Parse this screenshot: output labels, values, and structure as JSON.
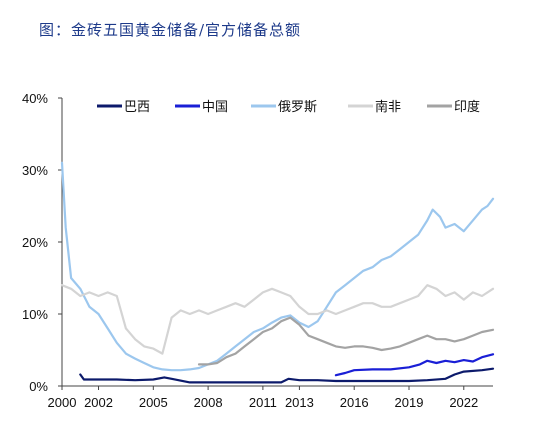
{
  "title": "图：金砖五国黄金储备/官方储备总额",
  "chart_data": {
    "type": "line",
    "title": "图：金砖五国黄金储备/官方储备总额",
    "xlabel": "",
    "ylabel": "",
    "xlim": [
      2000,
      2023.6
    ],
    "ylim": [
      0,
      40
    ],
    "x_ticks": [
      "2000",
      "2002",
      "2005",
      "2008",
      "2011",
      "2013",
      "2016",
      "2019",
      "2022"
    ],
    "y_ticks": [
      "0%",
      "10%",
      "20%",
      "30%",
      "40%"
    ],
    "legend_position": "top",
    "grid": false,
    "series": [
      {
        "name": "巴西",
        "color": "#0c1a6b",
        "width": 2.2,
        "points": [
          [
            2001.0,
            1.6
          ],
          [
            2001.2,
            0.9
          ],
          [
            2002.0,
            0.9
          ],
          [
            2003.0,
            0.9
          ],
          [
            2004.0,
            0.8
          ],
          [
            2005.0,
            0.9
          ],
          [
            2005.6,
            1.2
          ],
          [
            2006.0,
            1.0
          ],
          [
            2007.0,
            0.5
          ],
          [
            2008.0,
            0.5
          ],
          [
            2009.0,
            0.5
          ],
          [
            2010.0,
            0.5
          ],
          [
            2011.0,
            0.5
          ],
          [
            2012.0,
            0.5
          ],
          [
            2012.4,
            1.0
          ],
          [
            2013.0,
            0.8
          ],
          [
            2014.0,
            0.8
          ],
          [
            2015.0,
            0.7
          ],
          [
            2016.0,
            0.7
          ],
          [
            2017.0,
            0.7
          ],
          [
            2018.0,
            0.7
          ],
          [
            2019.0,
            0.7
          ],
          [
            2020.0,
            0.8
          ],
          [
            2021.0,
            1.0
          ],
          [
            2021.5,
            1.6
          ],
          [
            2022.0,
            2.0
          ],
          [
            2023.0,
            2.2
          ],
          [
            2023.6,
            2.4
          ]
        ]
      },
      {
        "name": "中国",
        "color": "#1a1fd6",
        "width": 2.2,
        "points": [
          [
            2015.0,
            1.5
          ],
          [
            2015.5,
            1.8
          ],
          [
            2016.0,
            2.2
          ],
          [
            2017.0,
            2.3
          ],
          [
            2018.0,
            2.3
          ],
          [
            2019.0,
            2.6
          ],
          [
            2019.6,
            3.0
          ],
          [
            2020.0,
            3.5
          ],
          [
            2020.5,
            3.2
          ],
          [
            2021.0,
            3.5
          ],
          [
            2021.5,
            3.3
          ],
          [
            2022.0,
            3.6
          ],
          [
            2022.5,
            3.4
          ],
          [
            2023.0,
            4.0
          ],
          [
            2023.6,
            4.4
          ]
        ]
      },
      {
        "name": "俄罗斯",
        "color": "#9cc7ee",
        "width": 2.2,
        "points": [
          [
            2000.0,
            31.0
          ],
          [
            2000.2,
            22.0
          ],
          [
            2000.5,
            15.0
          ],
          [
            2001.0,
            13.5
          ],
          [
            2001.5,
            11.0
          ],
          [
            2002.0,
            10.0
          ],
          [
            2002.5,
            8.0
          ],
          [
            2003.0,
            6.0
          ],
          [
            2003.5,
            4.5
          ],
          [
            2004.0,
            3.8
          ],
          [
            2004.5,
            3.2
          ],
          [
            2005.0,
            2.6
          ],
          [
            2005.5,
            2.3
          ],
          [
            2006.0,
            2.2
          ],
          [
            2006.5,
            2.2
          ],
          [
            2007.0,
            2.3
          ],
          [
            2007.5,
            2.5
          ],
          [
            2008.0,
            3.0
          ],
          [
            2008.5,
            3.5
          ],
          [
            2009.0,
            4.5
          ],
          [
            2009.5,
            5.5
          ],
          [
            2010.0,
            6.5
          ],
          [
            2010.5,
            7.5
          ],
          [
            2011.0,
            8.0
          ],
          [
            2011.5,
            8.8
          ],
          [
            2012.0,
            9.5
          ],
          [
            2012.5,
            9.8
          ],
          [
            2013.0,
            8.8
          ],
          [
            2013.5,
            8.2
          ],
          [
            2014.0,
            9.0
          ],
          [
            2014.5,
            11.0
          ],
          [
            2015.0,
            13.0
          ],
          [
            2015.5,
            14.0
          ],
          [
            2016.0,
            15.0
          ],
          [
            2016.5,
            16.0
          ],
          [
            2017.0,
            16.5
          ],
          [
            2017.5,
            17.5
          ],
          [
            2018.0,
            18.0
          ],
          [
            2018.5,
            19.0
          ],
          [
            2019.0,
            20.0
          ],
          [
            2019.5,
            21.0
          ],
          [
            2020.0,
            23.0
          ],
          [
            2020.3,
            24.5
          ],
          [
            2020.7,
            23.5
          ],
          [
            2021.0,
            22.0
          ],
          [
            2021.5,
            22.5
          ],
          [
            2022.0,
            21.5
          ],
          [
            2022.5,
            23.0
          ],
          [
            2023.0,
            24.5
          ],
          [
            2023.3,
            25.0
          ],
          [
            2023.6,
            26.0
          ]
        ]
      },
      {
        "name": "南非",
        "color": "#d4d4d4",
        "width": 2.2,
        "points": [
          [
            2000.0,
            14.0
          ],
          [
            2000.5,
            13.5
          ],
          [
            2001.0,
            12.5
          ],
          [
            2001.5,
            13.0
          ],
          [
            2002.0,
            12.5
          ],
          [
            2002.5,
            13.0
          ],
          [
            2003.0,
            12.5
          ],
          [
            2003.5,
            8.0
          ],
          [
            2004.0,
            6.5
          ],
          [
            2004.5,
            5.5
          ],
          [
            2005.0,
            5.2
          ],
          [
            2005.5,
            4.5
          ],
          [
            2006.0,
            9.5
          ],
          [
            2006.5,
            10.5
          ],
          [
            2007.0,
            10.0
          ],
          [
            2007.5,
            10.5
          ],
          [
            2008.0,
            10.0
          ],
          [
            2008.5,
            10.5
          ],
          [
            2009.0,
            11.0
          ],
          [
            2009.5,
            11.5
          ],
          [
            2010.0,
            11.0
          ],
          [
            2010.5,
            12.0
          ],
          [
            2011.0,
            13.0
          ],
          [
            2011.5,
            13.5
          ],
          [
            2012.0,
            13.0
          ],
          [
            2012.5,
            12.5
          ],
          [
            2013.0,
            11.0
          ],
          [
            2013.5,
            10.0
          ],
          [
            2014.0,
            10.0
          ],
          [
            2014.5,
            10.5
          ],
          [
            2015.0,
            10.0
          ],
          [
            2015.5,
            10.5
          ],
          [
            2016.0,
            11.0
          ],
          [
            2016.5,
            11.5
          ],
          [
            2017.0,
            11.5
          ],
          [
            2017.5,
            11.0
          ],
          [
            2018.0,
            11.0
          ],
          [
            2018.5,
            11.5
          ],
          [
            2019.0,
            12.0
          ],
          [
            2019.5,
            12.5
          ],
          [
            2020.0,
            14.0
          ],
          [
            2020.5,
            13.5
          ],
          [
            2021.0,
            12.5
          ],
          [
            2021.5,
            13.0
          ],
          [
            2022.0,
            12.0
          ],
          [
            2022.5,
            13.0
          ],
          [
            2023.0,
            12.5
          ],
          [
            2023.6,
            13.5
          ]
        ]
      },
      {
        "name": "印度",
        "color": "#a3a3a3",
        "width": 2.2,
        "points": [
          [
            2007.5,
            3.0
          ],
          [
            2008.0,
            3.0
          ],
          [
            2008.5,
            3.2
          ],
          [
            2009.0,
            4.0
          ],
          [
            2009.5,
            4.5
          ],
          [
            2010.0,
            5.5
          ],
          [
            2010.5,
            6.5
          ],
          [
            2011.0,
            7.5
          ],
          [
            2011.5,
            8.0
          ],
          [
            2012.0,
            9.0
          ],
          [
            2012.5,
            9.5
          ],
          [
            2013.0,
            8.5
          ],
          [
            2013.5,
            7.0
          ],
          [
            2014.0,
            6.5
          ],
          [
            2014.5,
            6.0
          ],
          [
            2015.0,
            5.5
          ],
          [
            2015.5,
            5.3
          ],
          [
            2016.0,
            5.5
          ],
          [
            2016.5,
            5.5
          ],
          [
            2017.0,
            5.3
          ],
          [
            2017.5,
            5.0
          ],
          [
            2018.0,
            5.2
          ],
          [
            2018.5,
            5.5
          ],
          [
            2019.0,
            6.0
          ],
          [
            2019.5,
            6.5
          ],
          [
            2020.0,
            7.0
          ],
          [
            2020.5,
            6.5
          ],
          [
            2021.0,
            6.5
          ],
          [
            2021.5,
            6.2
          ],
          [
            2022.0,
            6.5
          ],
          [
            2022.5,
            7.0
          ],
          [
            2023.0,
            7.5
          ],
          [
            2023.6,
            7.8
          ]
        ]
      }
    ]
  }
}
